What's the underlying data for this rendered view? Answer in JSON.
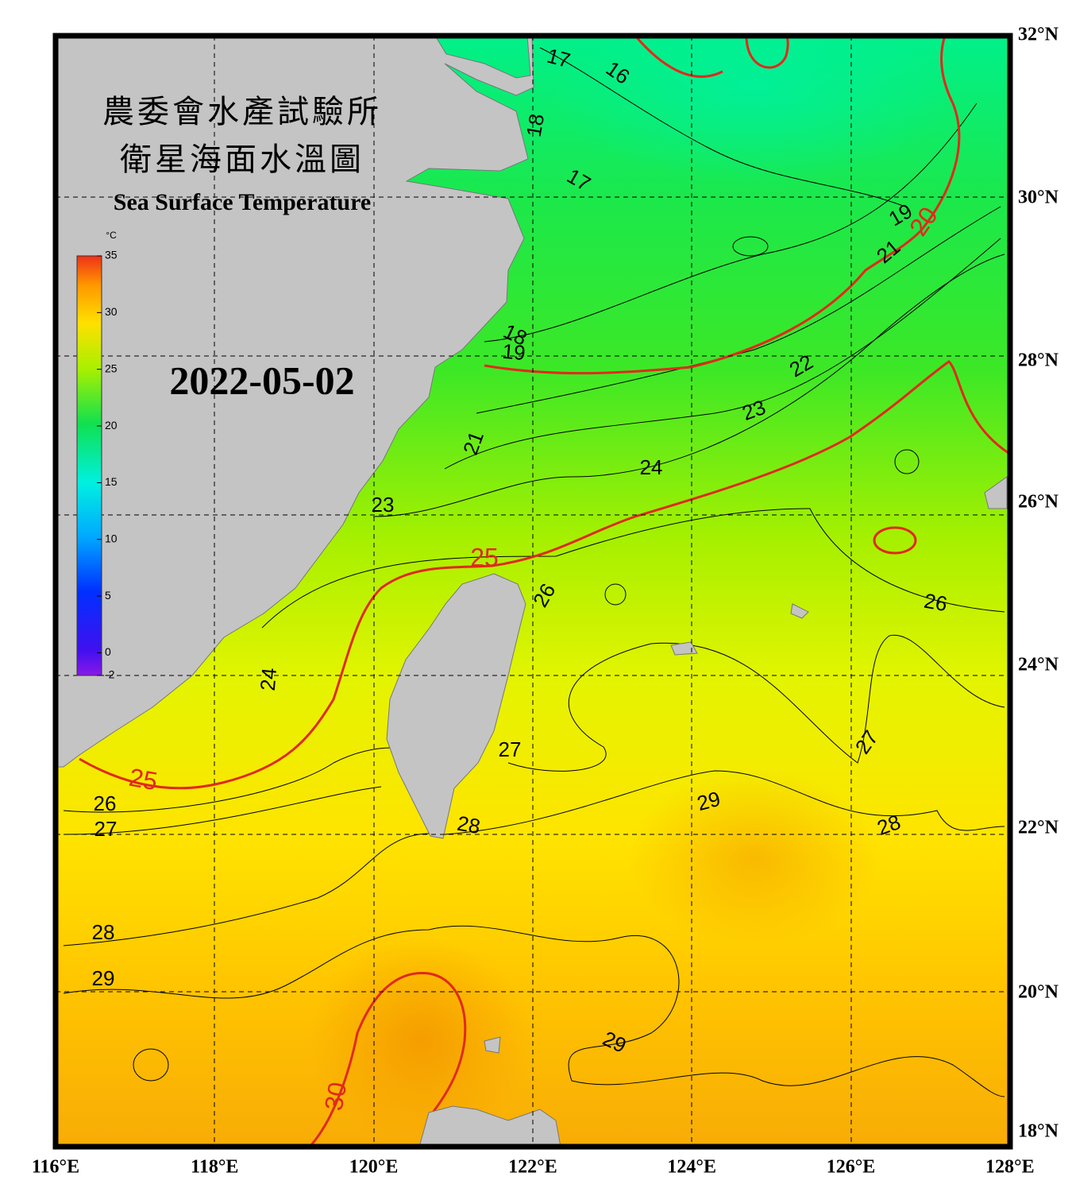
{
  "header": {
    "title_zh_1": "農委會水產試驗所",
    "title_zh_2": "衛星海面水溫圖",
    "title_en": "Sea Surface Temperature",
    "date": "2022-05-02"
  },
  "colorbar": {
    "unit": "°C",
    "ticks": [
      35,
      30,
      25,
      20,
      15,
      10,
      5,
      0,
      -2
    ]
  },
  "axes": {
    "lat_labels": [
      "32°N",
      "30°N",
      "28°N",
      "26°N",
      "24°N",
      "22°N",
      "20°N",
      "18°N"
    ],
    "lon_labels": [
      "116°E",
      "118°E",
      "120°E",
      "122°E",
      "124°E",
      "126°E",
      "128°E"
    ]
  },
  "contour_labels": [
    {
      "label": "17",
      "color": "#000000"
    },
    {
      "label": "16",
      "color": "#000000"
    },
    {
      "label": "18",
      "color": "#000000"
    },
    {
      "label": "17",
      "color": "#000000"
    },
    {
      "label": "19",
      "color": "#000000"
    },
    {
      "label": "20",
      "color": "#e02a1c"
    },
    {
      "label": "21",
      "color": "#000000"
    },
    {
      "label": "18",
      "color": "#000000"
    },
    {
      "label": "19",
      "color": "#000000"
    },
    {
      "label": "22",
      "color": "#000000"
    },
    {
      "label": "23",
      "color": "#000000"
    },
    {
      "label": "21",
      "color": "#000000"
    },
    {
      "label": "24",
      "color": "#000000"
    },
    {
      "label": "23",
      "color": "#000000"
    },
    {
      "label": "25",
      "color": "#e02a1c"
    },
    {
      "label": "26",
      "color": "#000000"
    },
    {
      "label": "26",
      "color": "#000000"
    },
    {
      "label": "24",
      "color": "#000000"
    },
    {
      "label": "27",
      "color": "#000000"
    },
    {
      "label": "27",
      "color": "#000000"
    },
    {
      "label": "25",
      "color": "#e02a1c"
    },
    {
      "label": "26",
      "color": "#000000"
    },
    {
      "label": "29",
      "color": "#000000"
    },
    {
      "label": "27",
      "color": "#000000"
    },
    {
      "label": "28",
      "color": "#000000"
    },
    {
      "label": "28",
      "color": "#000000"
    },
    {
      "label": "28",
      "color": "#000000"
    },
    {
      "label": "29",
      "color": "#000000"
    },
    {
      "label": "29",
      "color": "#000000"
    },
    {
      "label": "30",
      "color": "#e02a1c"
    }
  ]
}
